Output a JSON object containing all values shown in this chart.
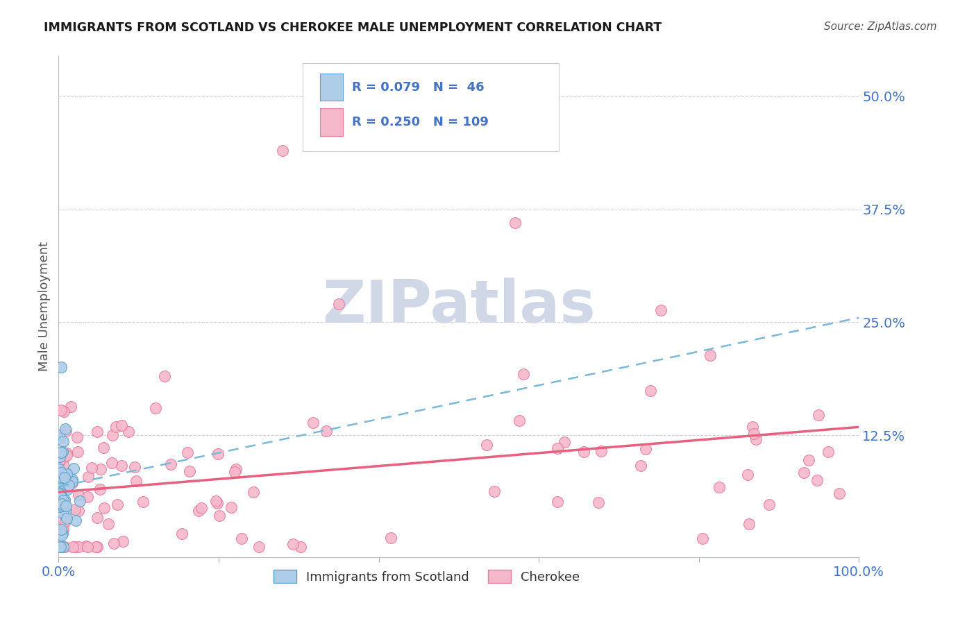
{
  "title": "IMMIGRANTS FROM SCOTLAND VS CHEROKEE MALE UNEMPLOYMENT CORRELATION CHART",
  "source": "Source: ZipAtlas.com",
  "ylabel": "Male Unemployment",
  "xlim": [
    0,
    1.0
  ],
  "ylim": [
    -0.01,
    0.545
  ],
  "ytick_vals": [
    0.125,
    0.25,
    0.375,
    0.5
  ],
  "ytick_labels": [
    "12.5%",
    "25.0%",
    "37.5%",
    "50.0%"
  ],
  "xtick_vals": [
    0.0,
    0.2,
    0.4,
    0.6,
    0.8,
    1.0
  ],
  "xtick_labels": [
    "0.0%",
    "",
    "",
    "",
    "",
    "100.0%"
  ],
  "series1_name": "Immigrants from Scotland",
  "series1_color": "#aecde8",
  "series1_edge_color": "#5b9ec9",
  "series1_R": 0.079,
  "series1_N": 46,
  "series2_name": "Cherokee",
  "series2_color": "#f5b8cb",
  "series2_edge_color": "#e8799e",
  "series2_R": 0.25,
  "series2_N": 109,
  "trend1_color": "#7ab8d9",
  "trend2_color": "#e8607f",
  "trend1_y_start": 0.068,
  "trend1_y_end": 0.255,
  "trend2_y_start": 0.062,
  "trend2_y_end": 0.134,
  "watermark_color": "#d0d8e8",
  "tick_color": "#4472c4",
  "label_color": "#555555",
  "grid_color": "#d0d0d0",
  "background_color": "#ffffff"
}
